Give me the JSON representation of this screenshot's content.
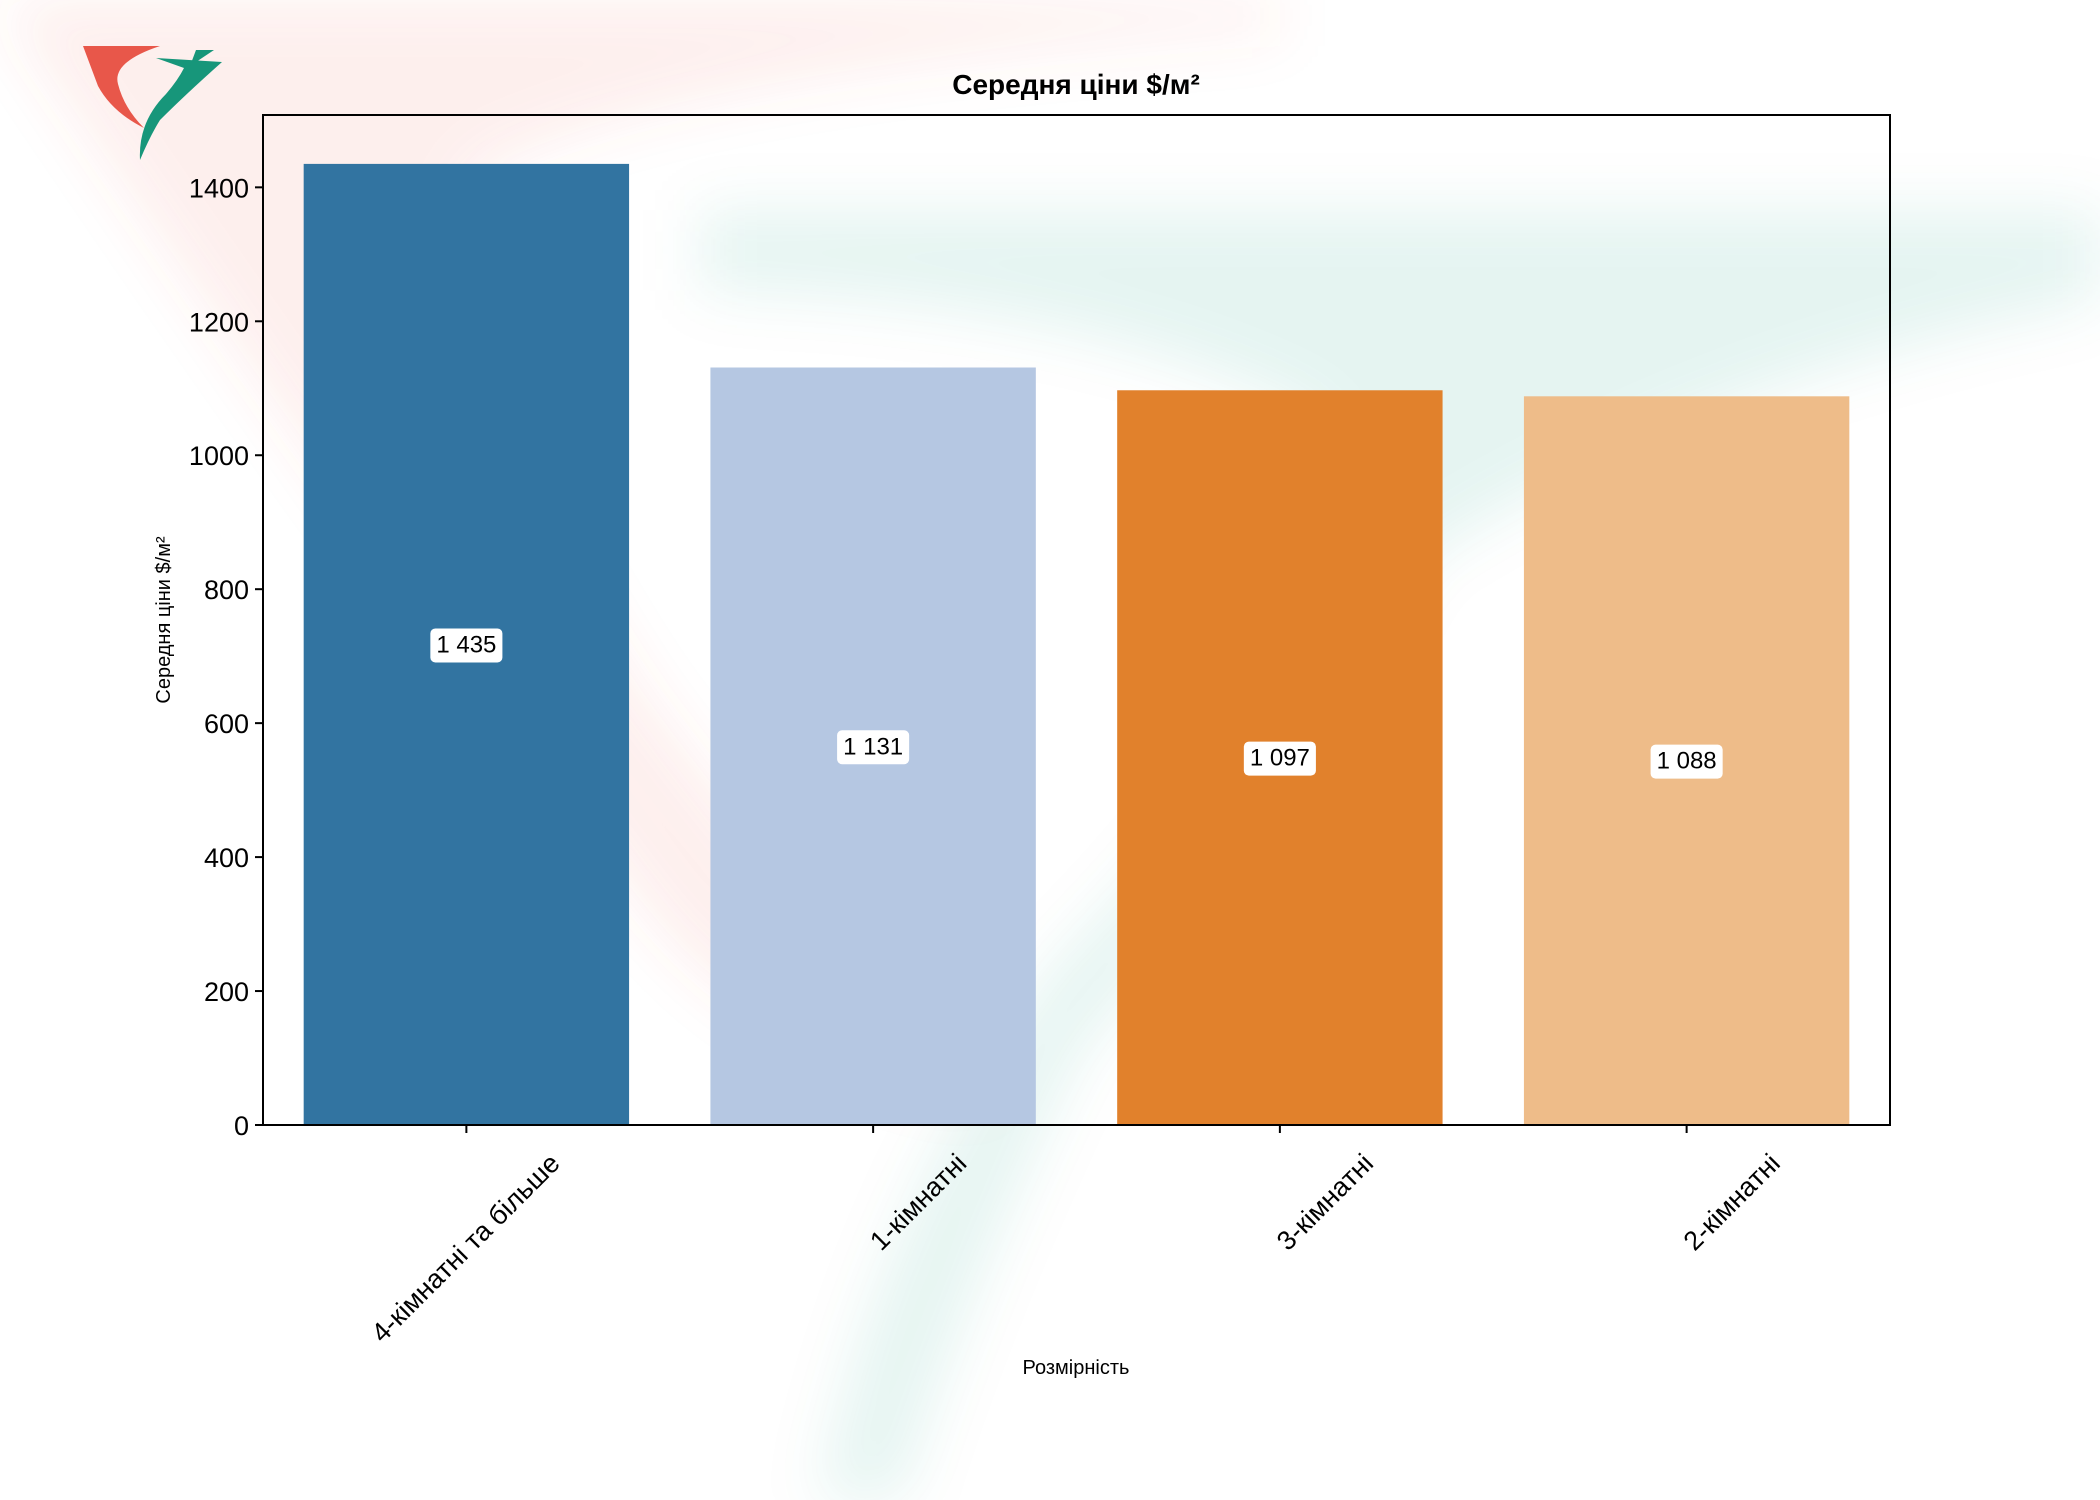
{
  "chart_data": {
    "type": "bar",
    "title": "Середня ціни $/м²",
    "xlabel": "Розмірність",
    "ylabel": "Середня ціни $/м²",
    "categories": [
      "4-кімнатні та більше",
      "1-кімнатні",
      "3-кімнатні",
      "2-кімнатні"
    ],
    "values": [
      1435,
      1131,
      1097,
      1088
    ],
    "data_labels": [
      "1 435",
      "1 131",
      "1 097",
      "1 088"
    ],
    "bar_colors": [
      "#3274a1",
      "#b5c7e2",
      "#e1812c",
      "#eebc89"
    ],
    "ylim": [
      0,
      1508
    ],
    "yticks": [
      0,
      200,
      400,
      600,
      800,
      1000,
      1200,
      1400
    ],
    "grid": false,
    "legend": "none"
  },
  "watermark": {
    "name": "logo-watermark",
    "colors": [
      "#e8574a",
      "#17967a"
    ]
  }
}
